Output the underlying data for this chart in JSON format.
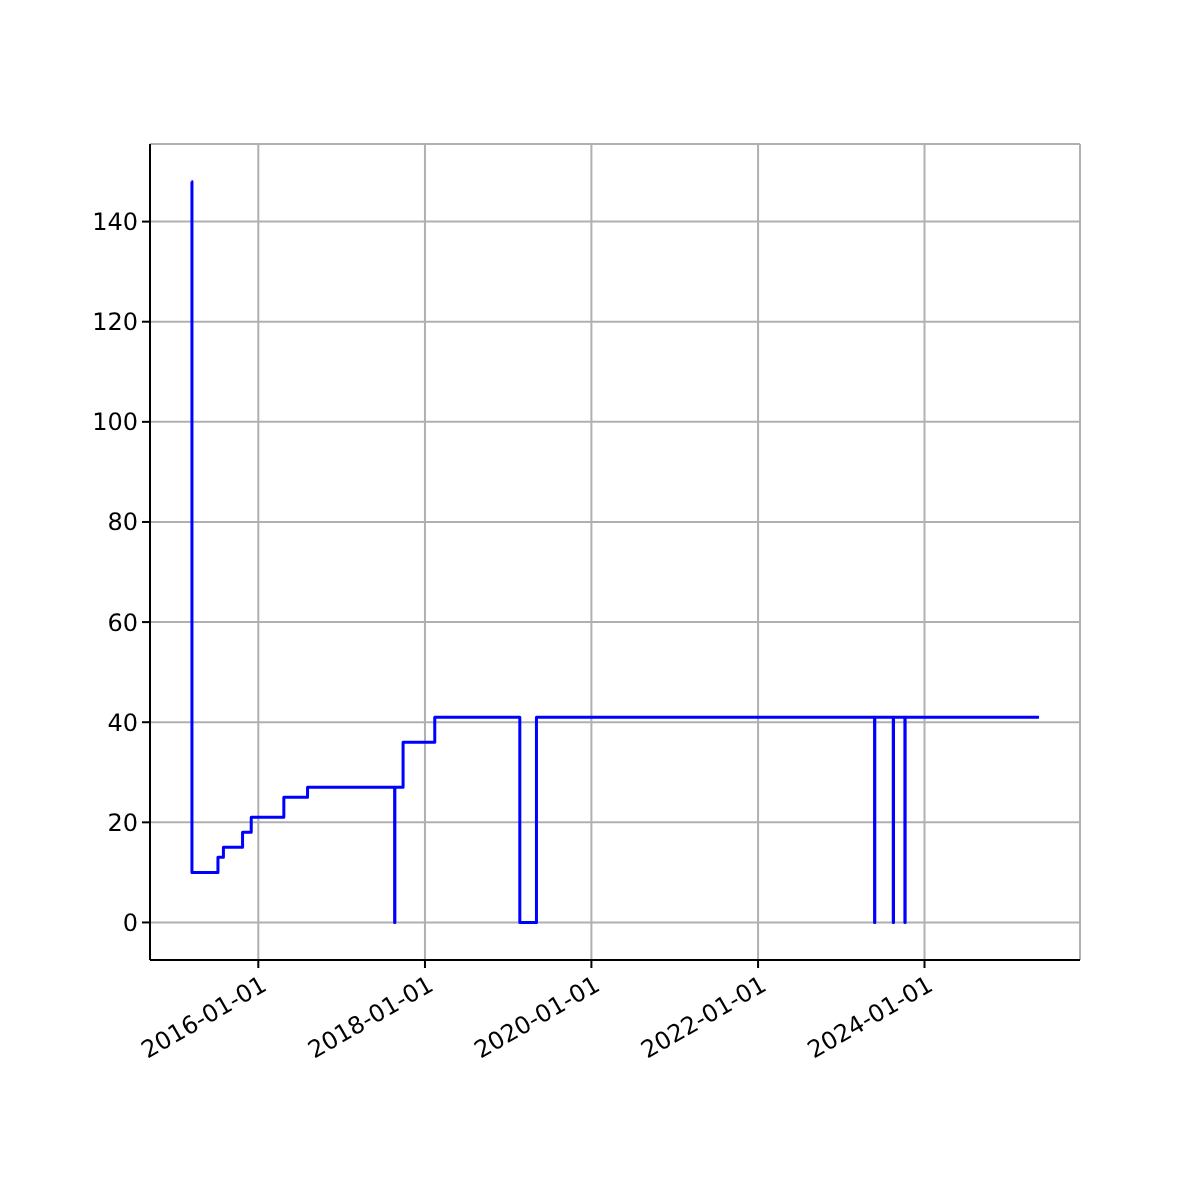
{
  "chart_data": {
    "type": "step",
    "color": "#0000ff",
    "x": [
      "2015-03-14",
      "2015-03-16",
      "2015-07-08",
      "2015-08-01",
      "2015-10-24",
      "2015-12-01",
      "2016-04-22",
      "2016-08-04",
      "2017-08-21",
      "2017-08-22",
      "2017-09-27",
      "2018-02-13",
      "2019-02-21",
      "2019-05-05",
      "2023-05-27",
      "2023-05-28",
      "2023-08-17",
      "2023-08-18",
      "2023-10-07",
      "2023-10-08",
      "2025-05-17"
    ],
    "values": [
      148,
      10,
      13,
      15,
      18,
      21,
      25,
      27,
      0,
      27,
      36,
      41,
      0,
      41,
      0,
      41,
      0,
      41,
      0,
      41,
      41
    ],
    "xlim": [
      "2014-09-13",
      "2025-11-13"
    ],
    "ylim": [
      -7.5,
      155.5
    ],
    "xticks": [
      "2016-01-01",
      "2018-01-01",
      "2020-01-01",
      "2022-01-01",
      "2024-01-01"
    ],
    "yticks": [
      0,
      20,
      40,
      60,
      80,
      100,
      120,
      140
    ],
    "grid": true
  }
}
